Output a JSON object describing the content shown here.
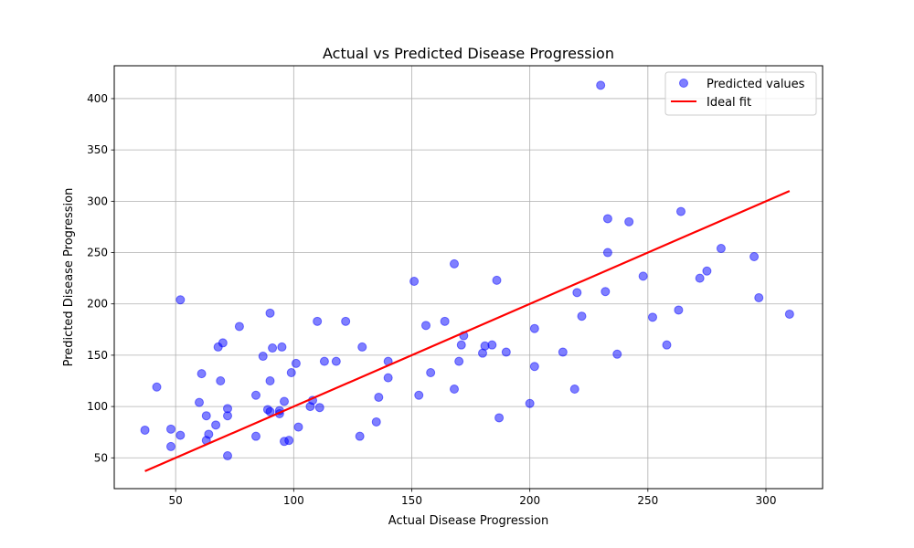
{
  "chart_data": {
    "type": "scatter",
    "title": "Actual vs Predicted Disease Progression",
    "xlabel": "Actual Disease Progression",
    "ylabel": "Predicted Disease Progression",
    "xlim": [
      24,
      324
    ],
    "ylim": [
      20,
      432
    ],
    "xticks": [
      50,
      100,
      150,
      200,
      250,
      300
    ],
    "yticks": [
      50,
      100,
      150,
      200,
      250,
      300,
      350,
      400
    ],
    "grid": true,
    "legend_position": "top-right",
    "colors": {
      "points": "#0000ff",
      "ideal_line": "#ff0000"
    },
    "series": [
      {
        "name": "Predicted values",
        "kind": "scatter",
        "points": [
          [
            37,
            77
          ],
          [
            42,
            119
          ],
          [
            48,
            78
          ],
          [
            48,
            61
          ],
          [
            52,
            72
          ],
          [
            52,
            204
          ],
          [
            60,
            104
          ],
          [
            61,
            132
          ],
          [
            63,
            91
          ],
          [
            63,
            67
          ],
          [
            64,
            73
          ],
          [
            67,
            82
          ],
          [
            68,
            158
          ],
          [
            69,
            125
          ],
          [
            70,
            162
          ],
          [
            72,
            98
          ],
          [
            72,
            91
          ],
          [
            72,
            52
          ],
          [
            77,
            178
          ],
          [
            84,
            111
          ],
          [
            84,
            71
          ],
          [
            87,
            149
          ],
          [
            89,
            97
          ],
          [
            90,
            125
          ],
          [
            90,
            191
          ],
          [
            90,
            95
          ],
          [
            91,
            157
          ],
          [
            94,
            93
          ],
          [
            94,
            96
          ],
          [
            95,
            158
          ],
          [
            96,
            105
          ],
          [
            96,
            66
          ],
          [
            98,
            67
          ],
          [
            99,
            133
          ],
          [
            101,
            142
          ],
          [
            102,
            80
          ],
          [
            107,
            100
          ],
          [
            108,
            106
          ],
          [
            110,
            183
          ],
          [
            111,
            99
          ],
          [
            113,
            144
          ],
          [
            118,
            144
          ],
          [
            122,
            183
          ],
          [
            128,
            71
          ],
          [
            129,
            158
          ],
          [
            135,
            85
          ],
          [
            136,
            109
          ],
          [
            140,
            144
          ],
          [
            140,
            128
          ],
          [
            151,
            222
          ],
          [
            153,
            111
          ],
          [
            156,
            179
          ],
          [
            158,
            133
          ],
          [
            164,
            183
          ],
          [
            168,
            239
          ],
          [
            168,
            117
          ],
          [
            170,
            144
          ],
          [
            171,
            160
          ],
          [
            172,
            169
          ],
          [
            180,
            152
          ],
          [
            181,
            159
          ],
          [
            184,
            160
          ],
          [
            186,
            223
          ],
          [
            187,
            89
          ],
          [
            190,
            153
          ],
          [
            200,
            103
          ],
          [
            202,
            176
          ],
          [
            202,
            139
          ],
          [
            214,
            153
          ],
          [
            219,
            117
          ],
          [
            220,
            211
          ],
          [
            222,
            188
          ],
          [
            230,
            413
          ],
          [
            232,
            212
          ],
          [
            233,
            283
          ],
          [
            233,
            250
          ],
          [
            237,
            151
          ],
          [
            242,
            280
          ],
          [
            248,
            227
          ],
          [
            252,
            187
          ],
          [
            258,
            160
          ],
          [
            263,
            194
          ],
          [
            264,
            290
          ],
          [
            272,
            225
          ],
          [
            275,
            232
          ],
          [
            281,
            254
          ],
          [
            295,
            246
          ],
          [
            297,
            206
          ],
          [
            310,
            190
          ]
        ]
      },
      {
        "name": "Ideal fit",
        "kind": "line",
        "points": [
          [
            37,
            37
          ],
          [
            310,
            310
          ]
        ]
      }
    ]
  }
}
